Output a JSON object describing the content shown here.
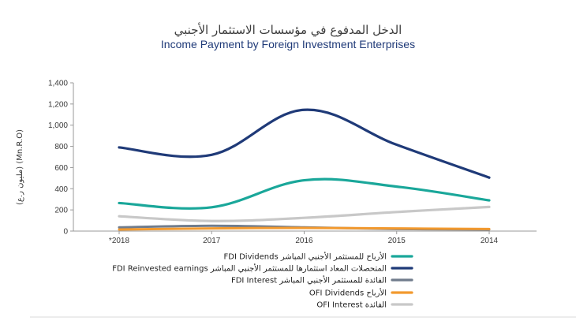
{
  "chart_data": {
    "type": "line",
    "title_ar": "الدخل المدفوع في مؤسسات الاستثمار الأجنبي",
    "title_en": "Income Payment by Foreign Investment Enterprises",
    "ylabel": "(مليون ر.ع) (Mn.R.O)",
    "categories": [
      "*2018",
      "2017",
      "2016",
      "2015",
      "2014"
    ],
    "ylim": [
      0,
      1400
    ],
    "yticks": [
      "0",
      "200",
      "400",
      "600",
      "800",
      "1,000",
      "1,200",
      "1,400"
    ],
    "grid": false,
    "legend_position": "bottom",
    "series": [
      {
        "name": "FDI Dividends الأرباح للمستثمر الأجنبي المباشر",
        "color": "#1aa79a",
        "values": [
          265,
          225,
          480,
          420,
          290
        ]
      },
      {
        "name": "FDI Reinvested earnings المتحصلات المعاد استثمارها للمستثمر الأجنبي المباشر",
        "color": "#1f3a78",
        "values": [
          790,
          720,
          1145,
          815,
          505
        ]
      },
      {
        "name": "FDI Interest الفائدة للمستثمر الأجنبي المباشر",
        "color": "#707c8c",
        "values": [
          35,
          50,
          35,
          20,
          15
        ]
      },
      {
        "name": "OFI Dividends الأرباح",
        "color": "#f2992e",
        "values": [
          15,
          25,
          30,
          25,
          20
        ]
      },
      {
        "name": "OFI Interest الفائدة",
        "color": "#c8c8c8",
        "values": [
          140,
          95,
          125,
          180,
          228
        ]
      }
    ]
  }
}
